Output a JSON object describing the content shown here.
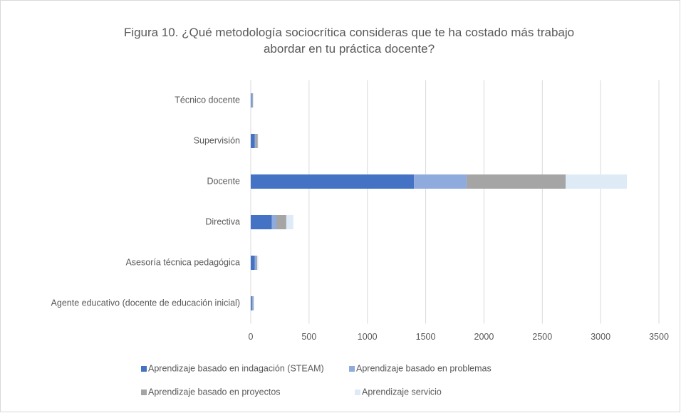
{
  "chart_data": {
    "type": "stacked-bar-horizontal",
    "title": "Figura 10. ¿Qué metodología sociocrítica consideras que te ha costado más trabajo abordar en tu práctica docente?",
    "categories": [
      "Técnico docente",
      "Supervisión",
      "Docente",
      "Directiva",
      "Asesoría técnica pedagógica",
      "Agente educativo (docente de educación inicial)"
    ],
    "series": [
      {
        "name": "Aprendizaje basado en indagación (STEAM)",
        "color": "#4472c4",
        "values": [
          5,
          35,
          1400,
          180,
          35,
          10
        ]
      },
      {
        "name": "Aprendizaje basado en problemas",
        "color": "#8faadc",
        "values": [
          10,
          5,
          450,
          40,
          10,
          10
        ]
      },
      {
        "name": "Aprendizaje basado en proyectos",
        "color": "#a5a5a5",
        "values": [
          5,
          20,
          850,
          85,
          10,
          5
        ]
      },
      {
        "name": "Aprendizaje servicio",
        "color": "#deebf7",
        "values": [
          3,
          5,
          525,
          60,
          10,
          5
        ]
      }
    ],
    "xlim": [
      0,
      3500
    ],
    "xticks": [
      0,
      500,
      1000,
      1500,
      2000,
      2500,
      3000,
      3500
    ],
    "grid": true,
    "legend": "bottom"
  }
}
